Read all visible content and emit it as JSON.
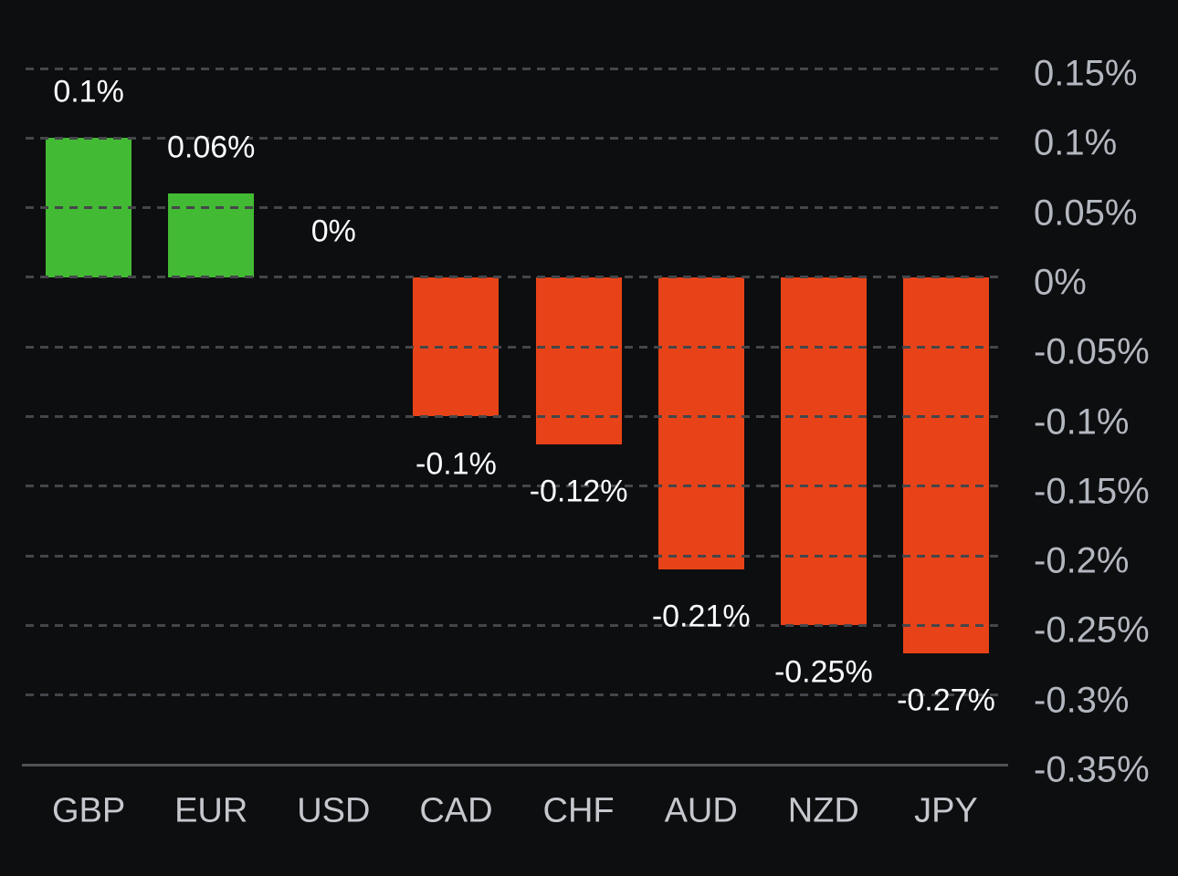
{
  "chart_data": {
    "type": "bar",
    "categories": [
      "GBP",
      "EUR",
      "USD",
      "CAD",
      "CHF",
      "AUD",
      "NZD",
      "JPY"
    ],
    "values": [
      0.1,
      0.06,
      0,
      -0.1,
      -0.12,
      -0.21,
      -0.25,
      -0.27
    ],
    "value_labels": [
      "0.1%",
      "0.06%",
      "0%",
      "-0.1%",
      "-0.12%",
      "-0.21%",
      "-0.25%",
      "-0.27%"
    ],
    "unit": "%",
    "ylim": [
      -0.35,
      0.15
    ],
    "ytick_step": 0.05,
    "yticks": [
      0.15,
      0.1,
      0.05,
      0,
      -0.05,
      -0.1,
      -0.15,
      -0.2,
      -0.25,
      -0.3,
      -0.35
    ],
    "ytick_labels": [
      "0.15%",
      "0.1%",
      "0.05%",
      "0%",
      "-0.05%",
      "-0.1%",
      "-0.15%",
      "-0.2%",
      "-0.25%",
      "-0.3%",
      "-0.35%"
    ],
    "grid": "horizontal-dashed",
    "grid_over_bars": true,
    "legend": "none",
    "ytick_label_side": "right",
    "colors": {
      "positive": "#43ba34",
      "negative": "#e84318",
      "background": "#0d0e10",
      "gridline": "#45464a",
      "axis_line": "#4f5357",
      "ytick_label": "#b3b7bf",
      "category_label": "#c5c8cd",
      "value_label": "#fbfcfd"
    }
  }
}
